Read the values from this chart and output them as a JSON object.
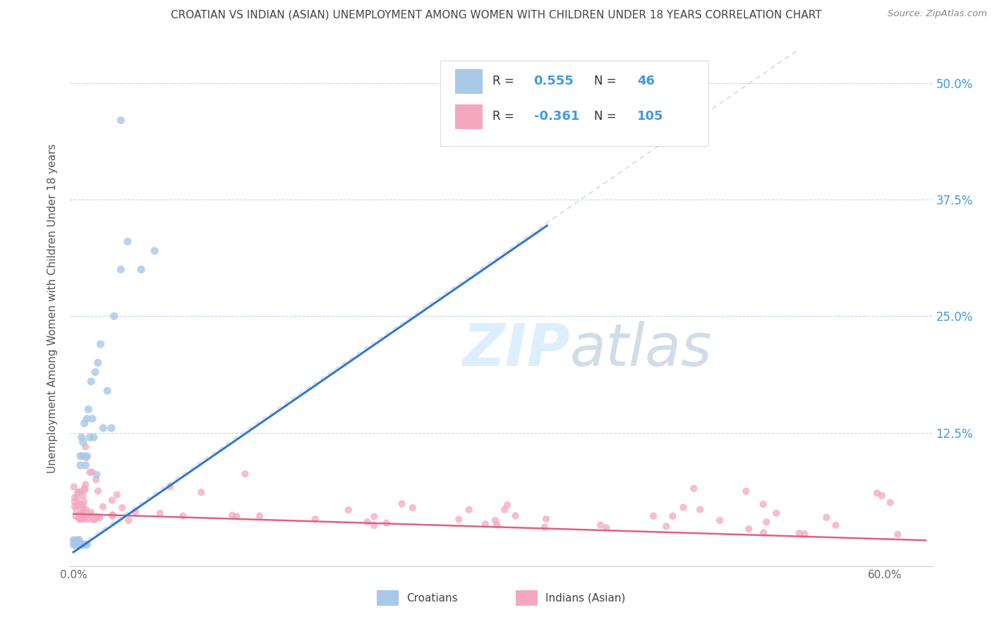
{
  "title": "CROATIAN VS INDIAN (ASIAN) UNEMPLOYMENT AMONG WOMEN WITH CHILDREN UNDER 18 YEARS CORRELATION CHART",
  "source": "Source: ZipAtlas.com",
  "ylabel": "Unemployment Among Women with Children Under 18 years",
  "croatian_R": 0.555,
  "croatian_N": 46,
  "indian_R": -0.361,
  "indian_N": 105,
  "croatian_color": "#a8c8e8",
  "indian_color": "#f4a8c0",
  "croatian_line_color": "#3377cc",
  "indian_line_color": "#e06080",
  "diagonal_color": "#c8d4e0",
  "background_color": "#ffffff",
  "grid_color": "#c8d8e8",
  "title_color": "#444444",
  "source_color": "#888888",
  "watermark_color": "#ddeeff",
  "legend_text_color": "#4499dd",
  "legend_label_color": "#333333",
  "right_tick_color": "#4499dd",
  "left_tick_color": "#777777",
  "xlim": [
    -0.003,
    0.635
  ],
  "ylim": [
    -0.018,
    0.535
  ],
  "xtick_vals": [
    0.0,
    0.1,
    0.2,
    0.3,
    0.4,
    0.5,
    0.6
  ],
  "xtick_labels": [
    "0.0%",
    "",
    "",
    "",
    "",
    "",
    "60.0%"
  ],
  "ytick_vals": [
    0.125,
    0.25,
    0.375,
    0.5
  ],
  "ytick_labels": [
    "12.5%",
    "25.0%",
    "37.5%",
    "50.0%"
  ]
}
